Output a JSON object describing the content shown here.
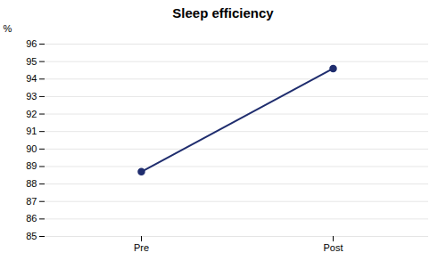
{
  "chart_data": {
    "type": "line",
    "title": "Sleep efficiency",
    "categories": [
      "Pre",
      "Post"
    ],
    "values": [
      88.7,
      94.6
    ],
    "color": "#1F2D6E",
    "marker": "circle",
    "ylabel": "%",
    "ylim": [
      85,
      96
    ],
    "yticks": [
      85,
      86,
      87,
      88,
      89,
      90,
      91,
      92,
      93,
      94,
      95,
      96
    ],
    "grid": "y"
  }
}
